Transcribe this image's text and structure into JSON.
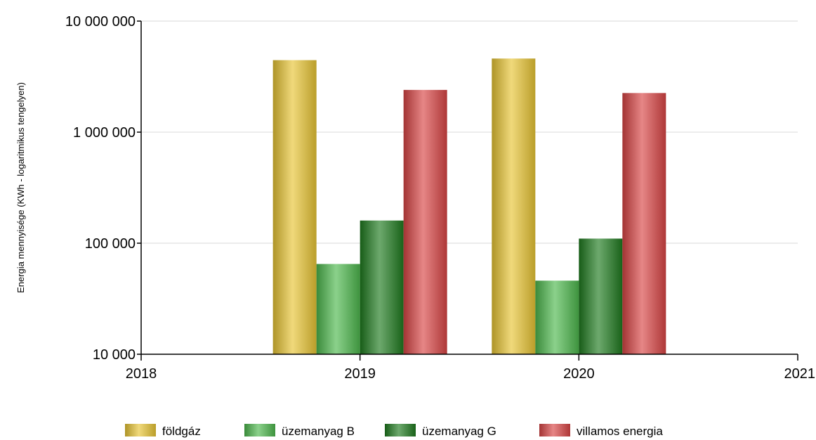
{
  "chart_data": {
    "type": "bar",
    "title": "",
    "xlabel": "",
    "ylabel": "Energia mennyisége (KWh - logaritmikus tengelyen)",
    "y_scale": "log",
    "ylim": [
      10000,
      10000000
    ],
    "y_ticks": [
      10000,
      100000,
      1000000,
      10000000
    ],
    "y_tick_labels": [
      "10 000",
      "100 000",
      "1 000 000",
      "10 000 000"
    ],
    "x_ticks": [
      "2018",
      "2019",
      "2020",
      "2021"
    ],
    "categories": [
      "2019",
      "2020"
    ],
    "grid": true,
    "legend_position": "bottom",
    "series": [
      {
        "name": "földgáz",
        "values": [
          4450000,
          4600000
        ],
        "color": "#e8c534"
      },
      {
        "name": "üzemanyag B",
        "values": [
          65000,
          46000
        ],
        "color": "#4db84d"
      },
      {
        "name": "üzemanyag G",
        "values": [
          160000,
          110000
        ],
        "color": "#1f7a1f"
      },
      {
        "name": "villamos energia",
        "values": [
          2400000,
          2250000
        ],
        "color": "#d94545"
      }
    ]
  }
}
